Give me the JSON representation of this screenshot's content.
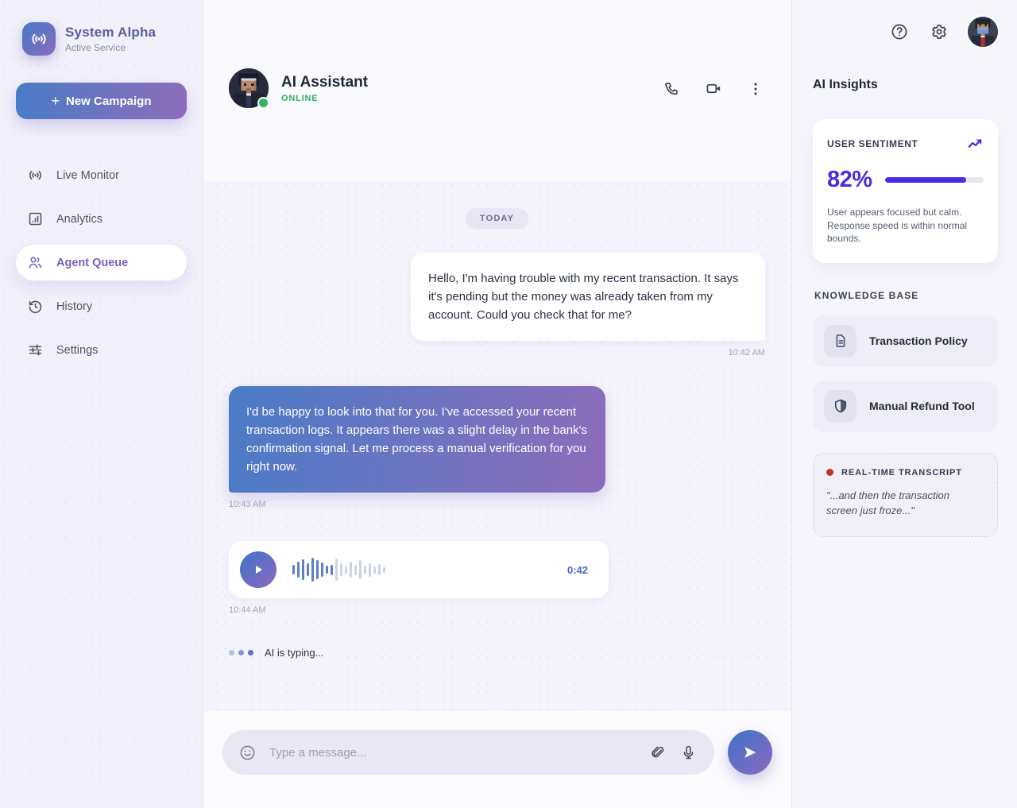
{
  "app": {
    "name": "System Alpha",
    "subtitle": "Active Service",
    "new_campaign_label": "New Campaign",
    "plus_glyph": "+"
  },
  "sidebar": {
    "items": [
      {
        "label": "Live Monitor",
        "icon": "broadcast-icon",
        "active": false
      },
      {
        "label": "Analytics",
        "icon": "bar-chart-icon",
        "active": false
      },
      {
        "label": "Agent Queue",
        "icon": "users-icon",
        "active": true
      },
      {
        "label": "History",
        "icon": "history-icon",
        "active": false
      },
      {
        "label": "Settings",
        "icon": "sliders-icon",
        "active": false
      }
    ]
  },
  "chat": {
    "header": {
      "name": "AI Assistant",
      "status": "ONLINE"
    },
    "date_divider": "TODAY",
    "messages": [
      {
        "type": "user",
        "text": "Hello, I'm having trouble with my recent transaction. It says it's pending but the money was already taken from my account. Could you check that for me?",
        "time": "10:42 AM"
      },
      {
        "type": "ai",
        "text": "I'd be happy to look into that for you. I've accessed your recent transaction logs. It appears there was a slight delay in the bank's confirmation signal. Let me process a manual verification for you right now.",
        "time": "10:43 AM"
      },
      {
        "type": "voice",
        "duration": "0:42",
        "time": "10:44 AM"
      }
    ],
    "typing_indicator": "AI is typing...",
    "input": {
      "placeholder": "Type a message..."
    }
  },
  "waveform": {
    "active_count": 9,
    "heights": [
      12,
      20,
      26,
      16,
      30,
      24,
      18,
      10,
      13,
      28,
      16,
      9,
      20,
      13,
      24,
      11,
      17,
      9,
      14,
      7
    ]
  },
  "insights": {
    "title": "AI Insights",
    "sentiment": {
      "label": "USER SENTIMENT",
      "value": "82%",
      "percent": 82,
      "description": "User appears focused but calm. Response speed is within normal bounds."
    },
    "knowledge_base": {
      "label": "KNOWLEDGE BASE",
      "items": [
        {
          "label": "Transaction Policy",
          "icon": "document-icon"
        },
        {
          "label": "Manual Refund Tool",
          "icon": "shield-icon"
        }
      ]
    },
    "transcript": {
      "label": "REAL-TIME TRANSCRIPT",
      "text": "\"...and then the transaction screen just froze...\""
    }
  },
  "colors": {
    "accent_purple": "#4c2be0",
    "gradient_start": "#4a7cc7",
    "gradient_end": "#8d6cba",
    "online_green": "#31b463",
    "record_red": "#ba3430",
    "active_nav_purple": "#7a5fc0"
  }
}
